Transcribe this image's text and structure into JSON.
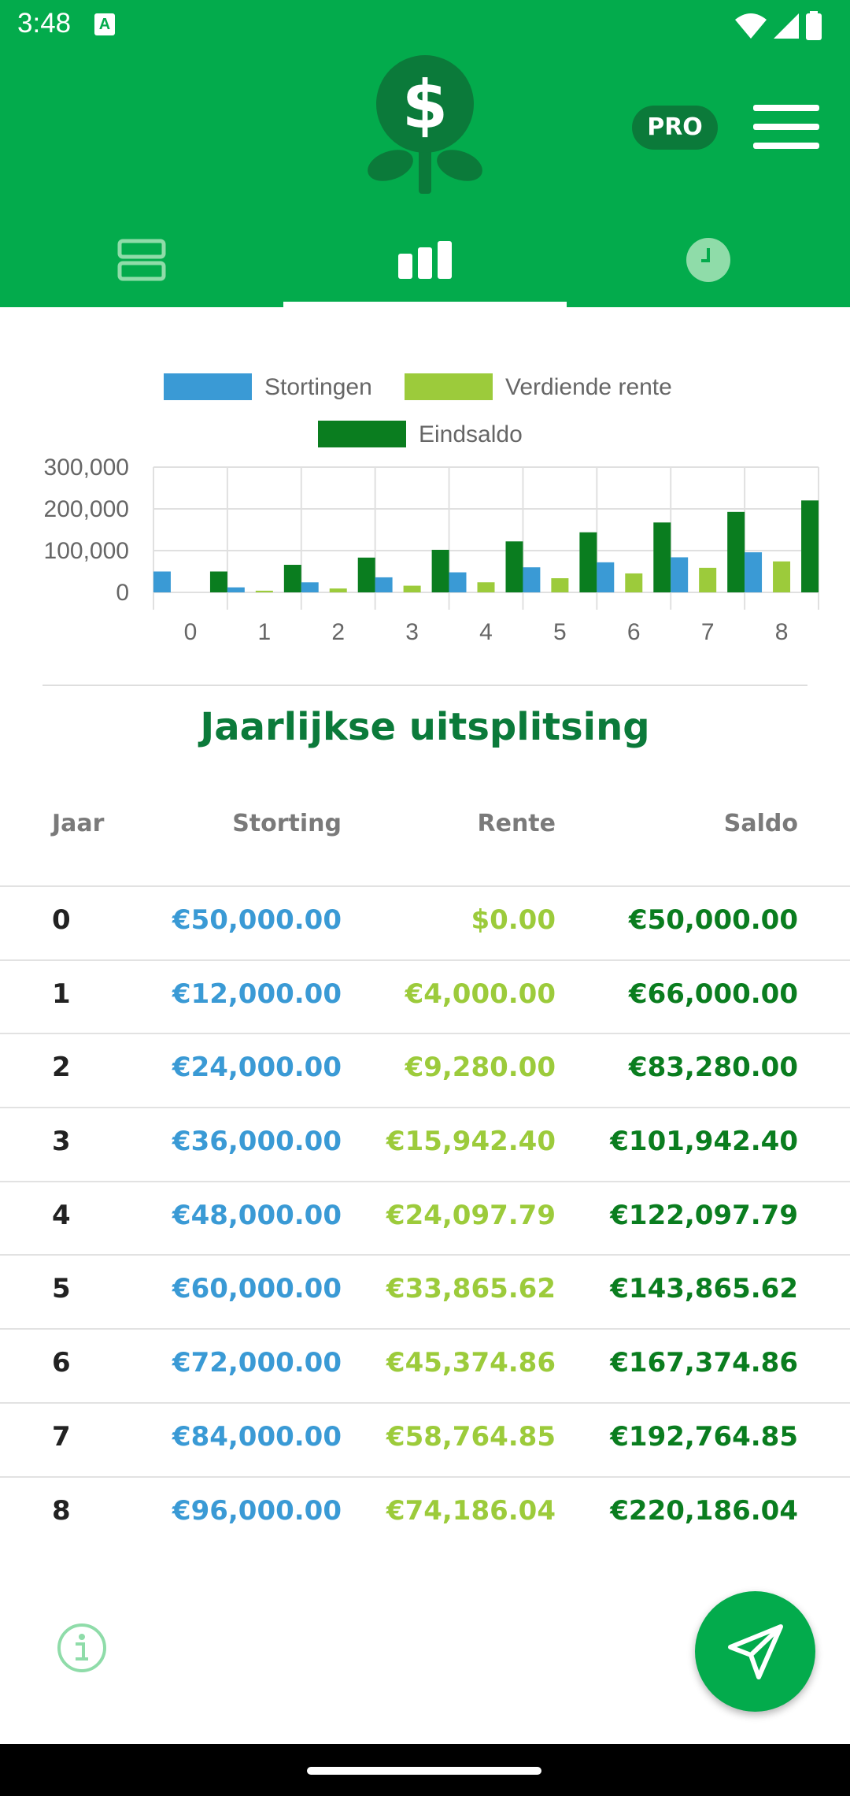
{
  "status_bar": {
    "time": "3:48",
    "a_icon": "A"
  },
  "header": {
    "logo_icon": "dollar-flower-icon",
    "pro_label": "PRO",
    "tabs": [
      {
        "icon": "list-icon",
        "active": false
      },
      {
        "icon": "bar-chart-icon",
        "active": true
      },
      {
        "icon": "clock-icon",
        "active": false
      }
    ]
  },
  "colors": {
    "header_bg": "#03AB4C",
    "deposits": "#3A9AD5",
    "interest": "#9CCB3B",
    "balance": "#0A7D1F",
    "title": "#0B7A3A"
  },
  "chart_data": {
    "type": "bar",
    "legend": [
      "Stortingen",
      "Verdiende rente",
      "Eindsaldo"
    ],
    "legend_placement": "top",
    "categories": [
      "0",
      "1",
      "2",
      "3",
      "4",
      "5",
      "6",
      "7",
      "8"
    ],
    "series": [
      {
        "name": "Stortingen",
        "values": [
          50000,
          12000,
          24000,
          36000,
          48000,
          60000,
          72000,
          84000,
          96000
        ]
      },
      {
        "name": "Verdiende rente",
        "values": [
          0,
          4000,
          9280,
          15942.4,
          24097.79,
          33865.62,
          45374.86,
          58764.85,
          74186.04
        ]
      },
      {
        "name": "Eindsaldo",
        "values": [
          50000,
          66000,
          83280,
          101942.4,
          122097.79,
          143865.62,
          167374.86,
          192764.85,
          220186.04
        ]
      }
    ],
    "y_ticks": [
      "300,000",
      "200,000",
      "100,000",
      "0"
    ],
    "ylim": [
      0,
      300000
    ],
    "grid": true
  },
  "table": {
    "title": "Jaarlijkse uitsplitsing",
    "headers": {
      "year": "Jaar",
      "deposit": "Storting",
      "interest": "Rente",
      "balance": "Saldo"
    },
    "rows": [
      {
        "year": "0",
        "deposit": "€50,000.00",
        "interest": "$0.00",
        "balance": "€50,000.00"
      },
      {
        "year": "1",
        "deposit": "€12,000.00",
        "interest": "€4,000.00",
        "balance": "€66,000.00"
      },
      {
        "year": "2",
        "deposit": "€24,000.00",
        "interest": "€9,280.00",
        "balance": "€83,280.00"
      },
      {
        "year": "3",
        "deposit": "€36,000.00",
        "interest": "€15,942.40",
        "balance": "€101,942.40"
      },
      {
        "year": "4",
        "deposit": "€48,000.00",
        "interest": "€24,097.79",
        "balance": "€122,097.79"
      },
      {
        "year": "5",
        "deposit": "€60,000.00",
        "interest": "€33,865.62",
        "balance": "€143,865.62"
      },
      {
        "year": "6",
        "deposit": "€72,000.00",
        "interest": "€45,374.86",
        "balance": "€167,374.86"
      },
      {
        "year": "7",
        "deposit": "€84,000.00",
        "interest": "€58,764.85",
        "balance": "€192,764.85"
      },
      {
        "year": "8",
        "deposit": "€96,000.00",
        "interest": "€74,186.04",
        "balance": "€220,186.04"
      }
    ]
  },
  "footer": {
    "info_icon": "info-icon",
    "fab_icon": "send-icon"
  }
}
